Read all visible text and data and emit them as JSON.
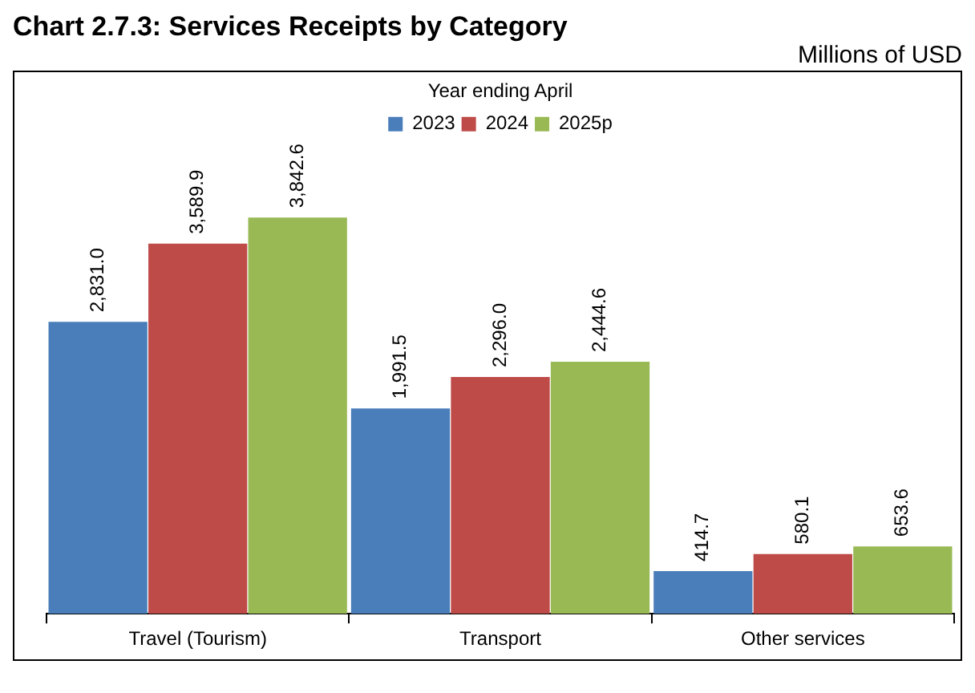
{
  "chart_data": {
    "type": "bar",
    "title": "Chart 2.7.3: Services Receipts by Category",
    "subtitle": "Millions of USD",
    "legend_title": "Year ending April",
    "categories": [
      "Travel (Tourism)",
      "Transport",
      "Other services"
    ],
    "legend": "top",
    "grid": false,
    "series": [
      {
        "name": "2023",
        "color": "#4a7ebb",
        "values": [
          2831.0,
          1991.5,
          414.7
        ],
        "value_labels": [
          "2,831.0",
          "1,991.5",
          "414.7"
        ]
      },
      {
        "name": "2024",
        "color": "#be4b48",
        "values": [
          3589.9,
          2296.0,
          580.1
        ],
        "value_labels": [
          "3,589.9",
          "2,296.0",
          "580.1"
        ]
      },
      {
        "name": "2025p",
        "color": "#98b954",
        "values": [
          3842.6,
          2444.6,
          653.6
        ],
        "value_labels": [
          "3,842.6",
          "2,444.6",
          "653.6"
        ]
      }
    ]
  }
}
